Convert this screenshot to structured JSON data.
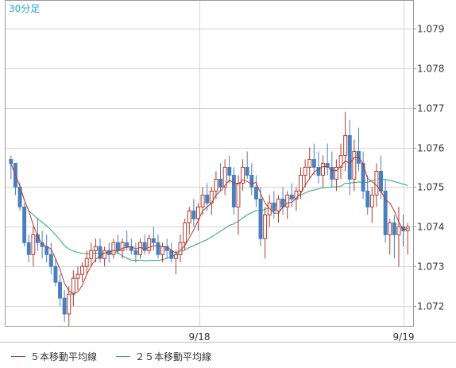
{
  "chart_data": {
    "type": "candlestick",
    "period_label": "30分足",
    "x_tick_labels": [
      "9/18",
      "9/19"
    ],
    "ylim": [
      1.0715,
      1.0797
    ],
    "y_ticks": [
      1.072,
      1.073,
      1.074,
      1.075,
      1.076,
      1.077,
      1.078,
      1.079
    ],
    "grid": true,
    "legend_position": "bottom",
    "colors": {
      "up": "#b03a2e",
      "down": "#4a7fbf",
      "ma5": "#b03a2e",
      "ma25": "#2ea37a",
      "grid": "#d4d4d4",
      "frame": "#999999",
      "period_label": "#2aa6d6"
    },
    "series": [
      {
        "name": "５本移動平均線",
        "type": "line"
      },
      {
        "name": "２５本移動平均線",
        "type": "line"
      }
    ],
    "candles": [
      [
        1.0757,
        1.0758,
        1.0752,
        1.0756
      ],
      [
        1.0756,
        1.0756,
        1.0748,
        1.075
      ],
      [
        1.075,
        1.0751,
        1.0744,
        1.0745
      ],
      [
        1.0745,
        1.0746,
        1.0735,
        1.0736
      ],
      [
        1.0736,
        1.0738,
        1.0731,
        1.0733
      ],
      [
        1.0733,
        1.074,
        1.073,
        1.0738
      ],
      [
        1.0738,
        1.0742,
        1.0734,
        1.0736
      ],
      [
        1.0736,
        1.0739,
        1.0732,
        1.0735
      ],
      [
        1.0735,
        1.0738,
        1.0731,
        1.0733
      ],
      [
        1.0733,
        1.0736,
        1.0728,
        1.073
      ],
      [
        1.073,
        1.0732,
        1.0725,
        1.0726
      ],
      [
        1.0726,
        1.0728,
        1.072,
        1.0722
      ],
      [
        1.0722,
        1.0724,
        1.0716,
        1.0718
      ],
      [
        1.0718,
        1.0725,
        1.0715,
        1.0723
      ],
      [
        1.0723,
        1.0729,
        1.072,
        1.0727
      ],
      [
        1.0727,
        1.073,
        1.0724,
        1.0728
      ],
      [
        1.0728,
        1.0731,
        1.0726,
        1.073
      ],
      [
        1.073,
        1.0734,
        1.0728,
        1.0732
      ],
      [
        1.0732,
        1.0736,
        1.073,
        1.0734
      ],
      [
        1.0734,
        1.0737,
        1.0731,
        1.0735
      ],
      [
        1.0735,
        1.0737,
        1.0731,
        1.0732
      ],
      [
        1.0732,
        1.0735,
        1.073,
        1.0734
      ],
      [
        1.0734,
        1.0736,
        1.0731,
        1.0733
      ],
      [
        1.0733,
        1.0737,
        1.0732,
        1.0736
      ],
      [
        1.0736,
        1.0738,
        1.0733,
        1.0734
      ],
      [
        1.0734,
        1.0737,
        1.0732,
        1.0736
      ],
      [
        1.0736,
        1.0739,
        1.0734,
        1.0735
      ],
      [
        1.0735,
        1.0737,
        1.0733,
        1.0734
      ],
      [
        1.0734,
        1.0736,
        1.0731,
        1.0733
      ],
      [
        1.0733,
        1.0737,
        1.0732,
        1.0736
      ],
      [
        1.0736,
        1.0738,
        1.0733,
        1.0734
      ],
      [
        1.0734,
        1.0738,
        1.0733,
        1.0737
      ],
      [
        1.0737,
        1.074,
        1.0734,
        1.0736
      ],
      [
        1.0736,
        1.0738,
        1.0732,
        1.0733
      ],
      [
        1.0733,
        1.0736,
        1.0731,
        1.0735
      ],
      [
        1.0735,
        1.0737,
        1.0732,
        1.0734
      ],
      [
        1.0734,
        1.0736,
        1.0731,
        1.0732
      ],
      [
        1.0732,
        1.0734,
        1.0728,
        1.0733
      ],
      [
        1.0733,
        1.0738,
        1.0731,
        1.0736
      ],
      [
        1.0736,
        1.0742,
        1.0734,
        1.0741
      ],
      [
        1.0741,
        1.0745,
        1.0738,
        1.0744
      ],
      [
        1.0744,
        1.0747,
        1.074,
        1.0742
      ],
      [
        1.0742,
        1.0746,
        1.0739,
        1.0745
      ],
      [
        1.0745,
        1.075,
        1.0743,
        1.0748
      ],
      [
        1.0748,
        1.0751,
        1.0744,
        1.0746
      ],
      [
        1.0746,
        1.075,
        1.0743,
        1.0749
      ],
      [
        1.0749,
        1.0754,
        1.0747,
        1.0752
      ],
      [
        1.0752,
        1.0756,
        1.0749,
        1.075
      ],
      [
        1.075,
        1.0757,
        1.0748,
        1.0755
      ],
      [
        1.0755,
        1.0758,
        1.0751,
        1.0753
      ],
      [
        1.0753,
        1.0755,
        1.0743,
        1.0745
      ],
      [
        1.0745,
        1.0753,
        1.0738,
        1.0751
      ],
      [
        1.0751,
        1.0757,
        1.0749,
        1.0755
      ],
      [
        1.0755,
        1.0759,
        1.0752,
        1.0753
      ],
      [
        1.0753,
        1.0756,
        1.0748,
        1.075
      ],
      [
        1.075,
        1.0753,
        1.0745,
        1.0747
      ],
      [
        1.0747,
        1.075,
        1.0735,
        1.0737
      ],
      [
        1.0737,
        1.0745,
        1.0732,
        1.0743
      ],
      [
        1.0743,
        1.0748,
        1.074,
        1.0746
      ],
      [
        1.0746,
        1.0749,
        1.0742,
        1.0744
      ],
      [
        1.0744,
        1.0748,
        1.0741,
        1.0747
      ],
      [
        1.0747,
        1.075,
        1.0743,
        1.0745
      ],
      [
        1.0745,
        1.0749,
        1.0742,
        1.0748
      ],
      [
        1.0748,
        1.0751,
        1.0745,
        1.0747
      ],
      [
        1.0747,
        1.075,
        1.0744,
        1.0749
      ],
      [
        1.0749,
        1.0755,
        1.0747,
        1.0753
      ],
      [
        1.0753,
        1.0757,
        1.075,
        1.0755
      ],
      [
        1.0755,
        1.076,
        1.0752,
        1.0757
      ],
      [
        1.0757,
        1.0761,
        1.0753,
        1.0755
      ],
      [
        1.0755,
        1.0759,
        1.0751,
        1.0753
      ],
      [
        1.0753,
        1.0758,
        1.075,
        1.0756
      ],
      [
        1.0756,
        1.0761,
        1.0753,
        1.0755
      ],
      [
        1.0755,
        1.0759,
        1.075,
        1.0752
      ],
      [
        1.0752,
        1.0757,
        1.0749,
        1.0755
      ],
      [
        1.0755,
        1.0761,
        1.0752,
        1.0758
      ],
      [
        1.0758,
        1.0769,
        1.0754,
        1.0763
      ],
      [
        1.0763,
        1.0767,
        1.0748,
        1.0752
      ],
      [
        1.0752,
        1.0762,
        1.0749,
        1.0759
      ],
      [
        1.0759,
        1.0765,
        1.0754,
        1.0756
      ],
      [
        1.0756,
        1.0759,
        1.0747,
        1.0749
      ],
      [
        1.0749,
        1.0753,
        1.0743,
        1.0745
      ],
      [
        1.0745,
        1.075,
        1.0741,
        1.0748
      ],
      [
        1.0748,
        1.0756,
        1.0745,
        1.0754
      ],
      [
        1.0754,
        1.0758,
        1.0747,
        1.0749
      ],
      [
        1.0749,
        1.0752,
        1.0736,
        1.0738
      ],
      [
        1.0738,
        1.0742,
        1.0733,
        1.0741
      ],
      [
        1.0741,
        1.0743,
        1.0732,
        1.0738
      ],
      [
        1.0738,
        1.0745,
        1.073,
        1.074
      ],
      [
        1.074,
        1.0743,
        1.0735,
        1.0739
      ],
      [
        1.0739,
        1.0741,
        1.0733,
        1.074
      ]
    ]
  }
}
